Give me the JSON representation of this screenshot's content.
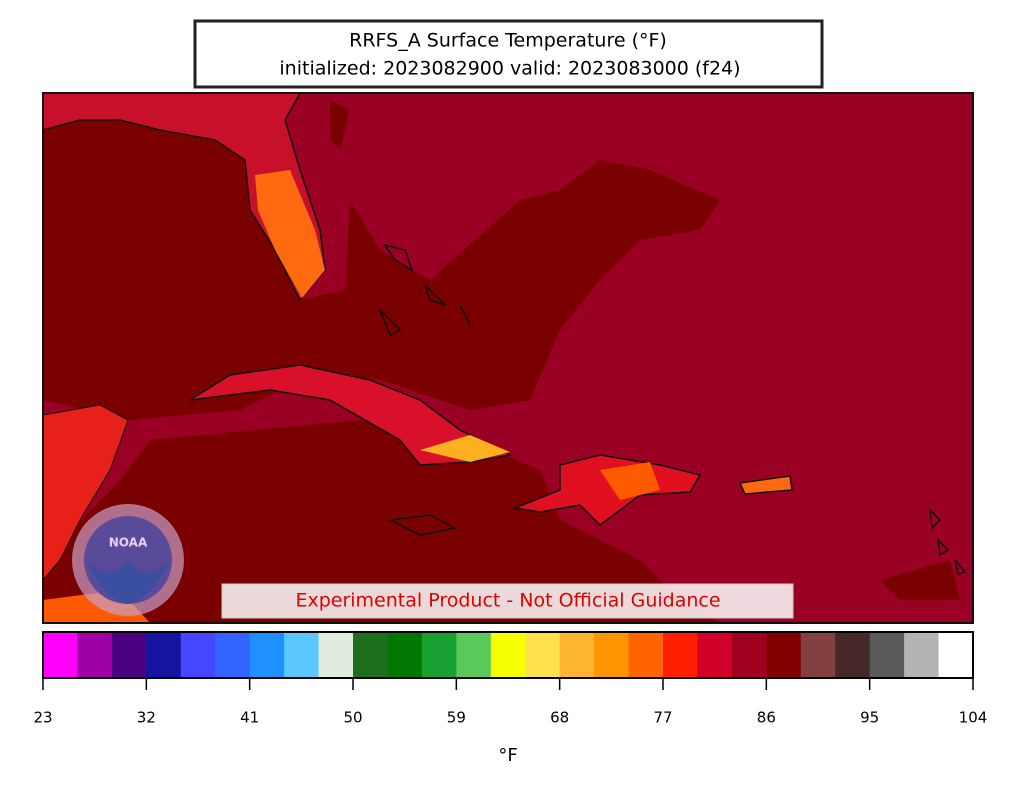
{
  "title": [
    "RRFS_A Surface Temperature (°F)",
    "initialized: 2023082900 valid: 2023083000 (f24)"
  ],
  "logo": "NOAA",
  "watermark": "Experimental Product - Not Official Guidance",
  "colorbar": {
    "bounds": [
      23,
      26,
      29,
      32,
      35,
      38,
      41,
      44,
      47,
      50,
      53,
      56,
      59,
      62,
      65,
      68,
      71,
      74,
      77,
      80,
      83,
      86,
      89,
      92,
      95,
      98,
      101,
      104
    ],
    "colors": [
      "#ff00ff",
      "#a000a8",
      "#4b0082",
      "#1414a0",
      "#4646ff",
      "#3264ff",
      "#1e90ff",
      "#5ac8ff",
      "#e0ece0",
      "#1e6e1e",
      "#007800",
      "#19a032",
      "#5ac85a",
      "#f5ff00",
      "#ffe150",
      "#ffb432",
      "#ff9600",
      "#ff6400",
      "#ff1e00",
      "#d20028",
      "#a00020",
      "#820000",
      "#824040",
      "#462828",
      "#5a5a5a",
      "#b4b4b4",
      "#ffffff"
    ],
    "ticks": [
      23,
      32,
      41,
      50,
      59,
      68,
      77,
      86,
      95,
      104
    ],
    "label": "°F"
  }
}
